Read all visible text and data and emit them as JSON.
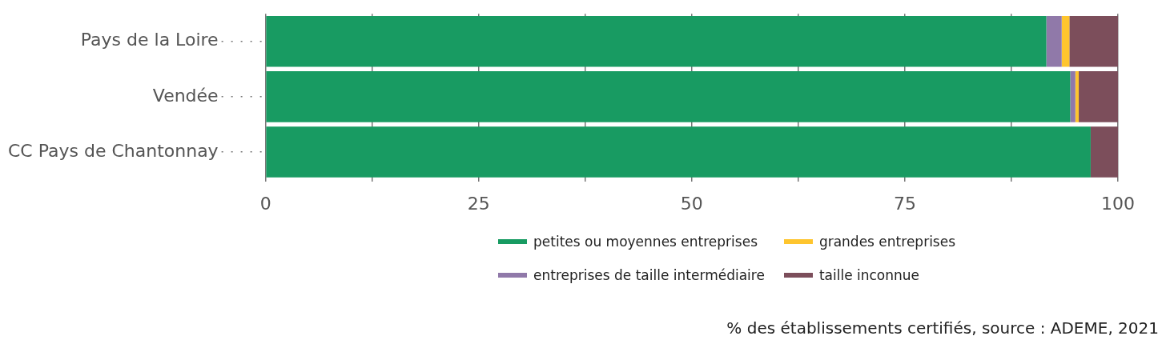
{
  "chart_data": {
    "type": "bar",
    "orientation": "horizontal",
    "stacked": true,
    "categories": [
      "Pays de la Loire",
      "Vendée",
      "CC Pays de Chantonnay"
    ],
    "series": [
      {
        "name": "petites ou moyennes entreprises",
        "color": "#189b62",
        "values": [
          91.6,
          94.4,
          96.8
        ]
      },
      {
        "name": "entreprises de taille intermédiaire",
        "color": "#9079a9",
        "values": [
          1.8,
          0.6,
          0
        ]
      },
      {
        "name": "grandes entreprises",
        "color": "#fec52e",
        "values": [
          0.9,
          0.4,
          0
        ]
      },
      {
        "name": "taille inconnue",
        "color": "#7c4e5b",
        "values": [
          5.7,
          4.6,
          3.2
        ]
      }
    ],
    "xlim": [
      0,
      100
    ],
    "xticks": [
      0,
      {
        "value": 12.5,
        "label": null
      },
      25,
      {
        "value": 37.5,
        "label": null
      },
      50,
      {
        "value": 62.5,
        "label": null
      },
      75,
      {
        "value": 87.5,
        "label": null
      },
      100
    ],
    "grid": "x",
    "line_style": "dotted",
    "legend": "bottom",
    "annotations": [
      "% des établissements certifiés, source : ADEME, 2021"
    ]
  }
}
